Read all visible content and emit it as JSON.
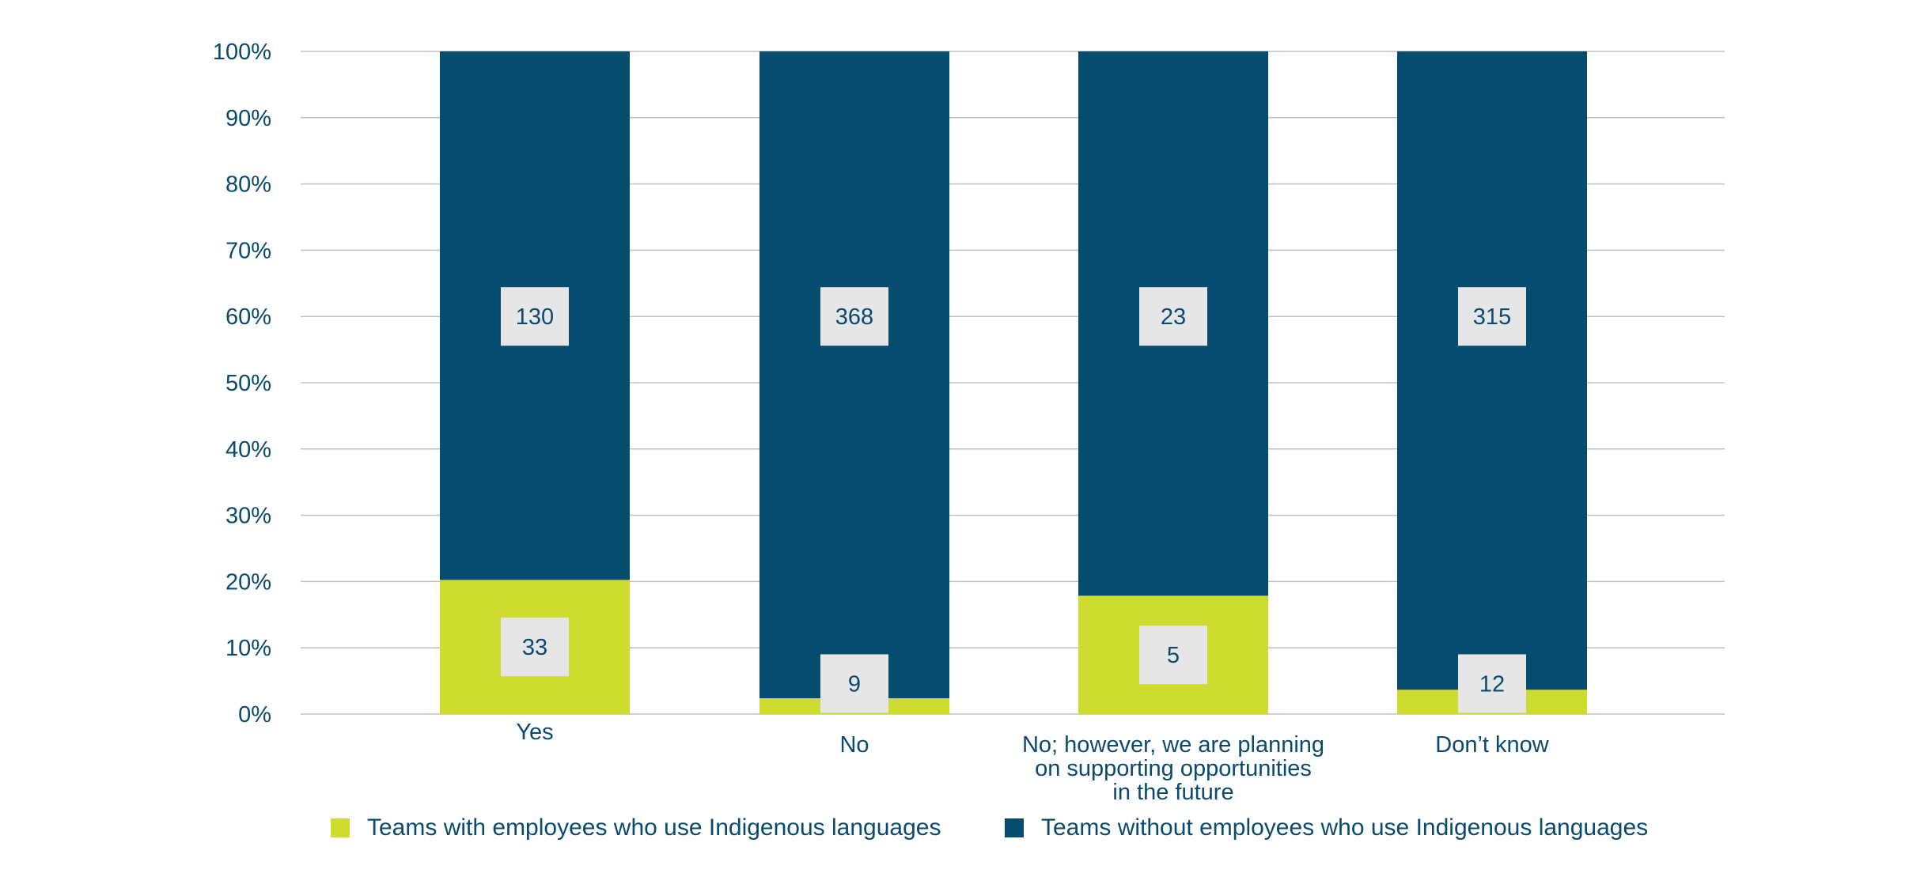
{
  "chart_data": {
    "type": "bar",
    "stacked": true,
    "normalized": true,
    "categories": [
      [
        "Yes"
      ],
      [
        "No"
      ],
      [
        "No; however, we are planning",
        "on supporting opportunities",
        "in the future"
      ],
      [
        "Don’t know"
      ]
    ],
    "series": [
      {
        "name": "Teams with employees who use Indigenous languages",
        "values": [
          33,
          9,
          5,
          12
        ],
        "color": "#cddc2e"
      },
      {
        "name": "Teams without employees who use Indigenous languages",
        "values": [
          130,
          368,
          23,
          315
        ],
        "color": "#044d6e"
      }
    ],
    "y_ticks": [
      "0%",
      "10%",
      "20%",
      "30%",
      "40%",
      "50%",
      "60%",
      "70%",
      "80%",
      "90%",
      "100%"
    ],
    "ylim": [
      0,
      100
    ],
    "grid": true,
    "legend_position": "bottom",
    "colors": {
      "gridline": "#bfbfbf",
      "label_box": "#e6e6e6",
      "text": "#0a4a6e"
    }
  }
}
